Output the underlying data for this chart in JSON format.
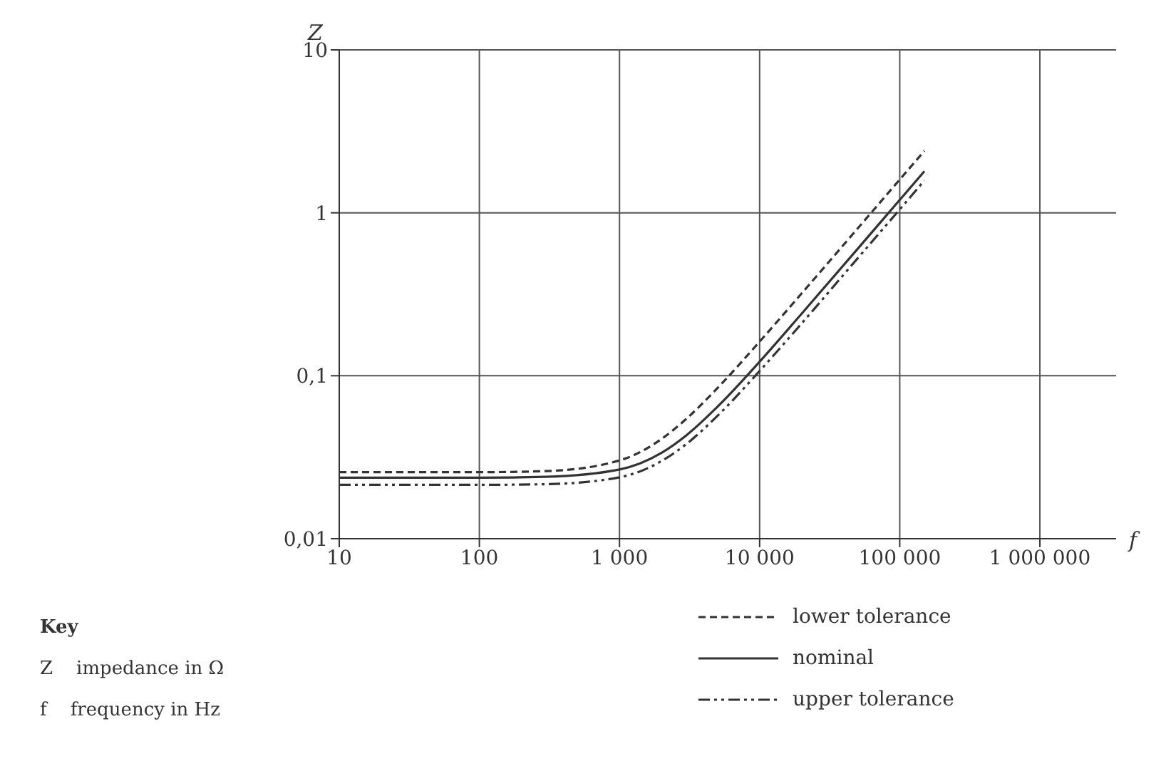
{
  "chart_data": {
    "type": "line",
    "xlabel": "f",
    "ylabel": "Z",
    "log": "xy",
    "grid": true,
    "legend": "bottom right",
    "xlim": [
      10,
      3500000
    ],
    "xticks": [
      10,
      100,
      {
        "value": 1000,
        "label": "1 000"
      },
      {
        "value": 10000,
        "label": "10 000"
      },
      {
        "value": 100000,
        "label": "100 000"
      },
      {
        "value": 1000000,
        "label": "1 000 000"
      }
    ],
    "ylim": [
      0.01,
      10
    ],
    "yticks": [
      {
        "value": 0.01,
        "label": "0,01"
      },
      {
        "value": 0.1,
        "label": "0,1"
      },
      1,
      10
    ],
    "x": [
      10,
      100,
      300,
      1000,
      2000,
      3000,
      5000,
      10000,
      20000,
      50000,
      100000,
      150000
    ],
    "series": [
      {
        "name": "lower tolerance",
        "color": "#333333",
        "line_style": "dashed",
        "values": [
          0.0256,
          0.0256,
          0.026,
          0.0302,
          0.041,
          0.0544,
          0.084,
          0.162,
          0.321,
          0.8,
          1.6,
          2.4
        ]
      },
      {
        "name": "nominal",
        "color": "#333333",
        "line_style": "solid",
        "values": [
          0.0237,
          0.0237,
          0.024,
          0.0266,
          0.0337,
          0.0431,
          0.0645,
          0.122,
          0.241,
          0.6,
          1.2,
          1.8
        ]
      },
      {
        "name": "upper tolerance",
        "color": "#333333",
        "line_style": "dashdot",
        "values": [
          0.0214,
          0.0214,
          0.0216,
          0.0238,
          0.03,
          0.0381,
          0.0567,
          0.107,
          0.21,
          0.525,
          1.05,
          1.58
        ]
      }
    ],
    "annotations": [
      "Key",
      "Z    impedance in Ω",
      "f    frequency in Hz"
    ]
  }
}
